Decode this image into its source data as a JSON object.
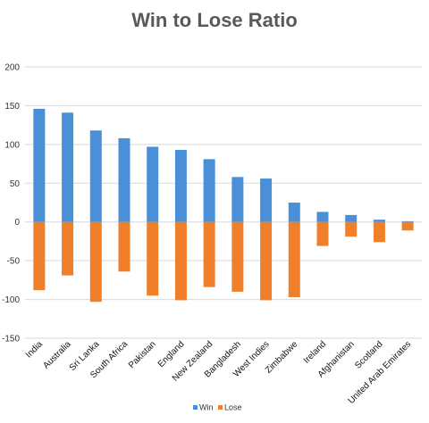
{
  "chart_data": {
    "type": "bar",
    "title": "Win to Lose Ratio",
    "xlabel": "",
    "ylabel": "",
    "ylim": [
      -150,
      200
    ],
    "yticks": [
      200,
      150,
      100,
      50,
      0,
      -50,
      -100,
      -150
    ],
    "grid": true,
    "legend_position": "bottom",
    "categories": [
      "India",
      "Australia",
      "Sri Lanka",
      "South Africa",
      "Pakistan",
      "England",
      "New Zealand",
      "Bangladesh",
      "West Indies",
      "Zimbabwe",
      "Ireland",
      "Afghanistan",
      "Scotland",
      "United Arab Emirates"
    ],
    "series": [
      {
        "name": "Win",
        "color": "#4a90d9",
        "values": [
          146,
          141,
          118,
          108,
          97,
          93,
          81,
          58,
          56,
          25,
          13,
          9,
          3,
          1
        ]
      },
      {
        "name": "Lose",
        "color": "#f07f2a",
        "values": [
          -88,
          -69,
          -103,
          -64,
          -95,
          -101,
          -84,
          -90,
          -101,
          -97,
          -31,
          -19,
          -26,
          -11
        ]
      }
    ]
  }
}
